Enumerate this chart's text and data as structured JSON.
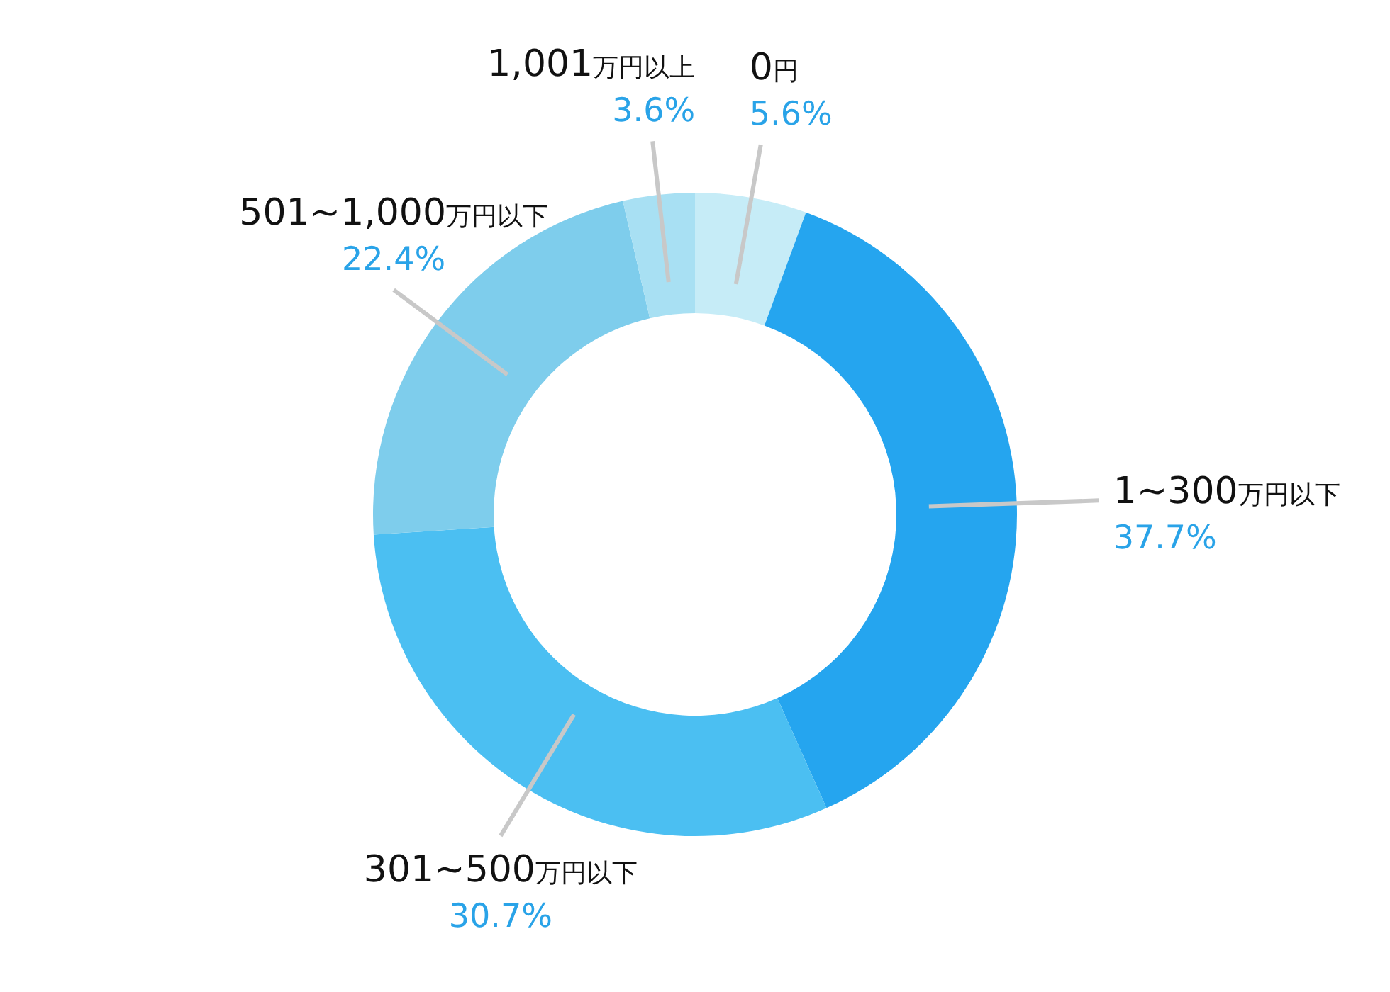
{
  "chart_data": {
    "type": "donut",
    "categories": [
      "0円",
      "1~300万円以下",
      "301~500万円以下",
      "501~1,000万円以下",
      "1,001万円以上"
    ],
    "values": [
      5.6,
      37.7,
      30.7,
      22.4,
      3.6
    ],
    "colors": [
      "#c6ecf7",
      "#25a5ef",
      "#4bbff2",
      "#7ecdec",
      "#a8e0f3"
    ],
    "value_labels": [
      "5.6%",
      "37.7%",
      "30.7%",
      "22.4%",
      "3.6%"
    ],
    "legend": false
  }
}
